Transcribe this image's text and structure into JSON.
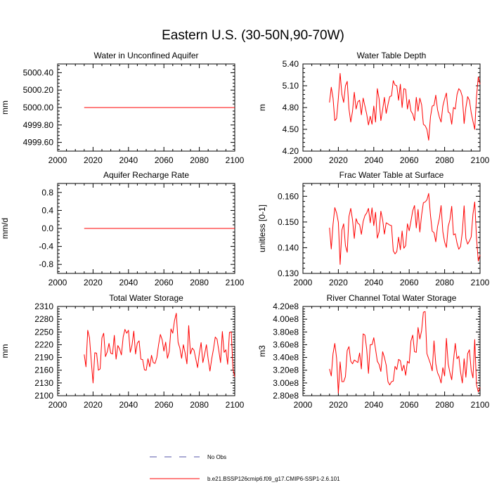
{
  "figure_title": "Eastern U.S. (30-50N,90-70W)",
  "colors": {
    "series": "#ff0000",
    "obs": "#5555aa",
    "axis": "#000000"
  },
  "legend": {
    "entries": [
      {
        "label": "No Obs",
        "style": "dashed",
        "color": "#5555aa"
      },
      {
        "label": "b.e21.BSSP126cmip6.f09_g17.CMIP6-SSP1-2.6.101",
        "style": "solid",
        "color": "#ff0000"
      }
    ]
  },
  "chart_data": [
    {
      "type": "line",
      "title": "Water in Unconfined Aquifer",
      "ylabel": "mm",
      "xlim": [
        2000,
        2100
      ],
      "ylim": [
        4999.5,
        5000.5
      ],
      "xticks": [
        2000,
        2020,
        2040,
        2060,
        2080,
        2100
      ],
      "xtick_labels": [
        "2000",
        "2020",
        "2040",
        "2060",
        "2080",
        "2100"
      ],
      "yticks": [
        4999.6,
        4999.8,
        5000.0,
        5000.2,
        5000.4
      ],
      "ytick_labels": [
        "4999.60",
        "4999.80",
        "5000.00",
        "5000.20",
        "5000.40"
      ],
      "x_start": 2015,
      "series": [
        {
          "values": [
            5000,
            5000,
            5000,
            5000,
            5000,
            5000,
            5000,
            5000,
            5000,
            5000,
            5000,
            5000,
            5000,
            5000,
            5000,
            5000,
            5000,
            5000,
            5000,
            5000,
            5000,
            5000,
            5000,
            5000,
            5000,
            5000,
            5000,
            5000,
            5000,
            5000,
            5000,
            5000,
            5000,
            5000,
            5000,
            5000,
            5000,
            5000,
            5000,
            5000,
            5000,
            5000,
            5000,
            5000,
            5000,
            5000,
            5000,
            5000,
            5000,
            5000,
            5000,
            5000,
            5000,
            5000,
            5000,
            5000,
            5000,
            5000,
            5000,
            5000,
            5000,
            5000,
            5000,
            5000,
            5000,
            5000,
            5000,
            5000,
            5000,
            5000,
            5000,
            5000,
            5000,
            5000,
            5000,
            5000,
            5000,
            5000,
            5000,
            5000,
            5000,
            5000,
            5000,
            5000,
            5000,
            5000
          ]
        }
      ]
    },
    {
      "type": "line",
      "title": "Water Table Depth",
      "ylabel": "m",
      "xlim": [
        2000,
        2100
      ],
      "ylim": [
        4.2,
        5.4
      ],
      "xticks": [
        2000,
        2020,
        2040,
        2060,
        2080,
        2100
      ],
      "xtick_labels": [
        "2000",
        "2020",
        "2040",
        "2060",
        "2080",
        "2100"
      ],
      "yticks": [
        4.2,
        4.5,
        4.8,
        5.1,
        5.4
      ],
      "ytick_labels": [
        "4.20",
        "4.50",
        "4.80",
        "5.10",
        "5.40"
      ],
      "x_start": 2015,
      "series": [
        {
          "values": [
            4.87,
            5.08,
            4.93,
            4.62,
            4.65,
            4.93,
            5.27,
            4.98,
            4.87,
            5.1,
            5.16,
            4.78,
            4.6,
            4.75,
            5.01,
            4.78,
            4.88,
            4.9,
            4.7,
            4.93,
            4.82,
            4.71,
            4.56,
            4.68,
            4.57,
            4.82,
            4.6,
            5.06,
            4.92,
            4.62,
            4.77,
            4.94,
            4.72,
            4.84,
            4.95,
            4.96,
            5.17,
            5.11,
            5.1,
            4.9,
            5.12,
            4.8,
            5.06,
            5.05,
            4.78,
            4.91,
            4.75,
            4.71,
            4.62,
            4.94,
            4.75,
            4.93,
            4.84,
            4.57,
            4.55,
            4.5,
            4.35,
            4.67,
            4.82,
            4.83,
            4.97,
            4.77,
            4.67,
            4.6,
            4.82,
            4.92,
            5,
            4.74,
            4.72,
            4.57,
            4.8,
            4.78,
            4.98,
            5.06,
            5.03,
            4.95,
            4.58,
            4.8,
            4.95,
            4.9,
            4.73,
            4.61,
            4.5,
            4.95,
            5.22,
            5.12
          ]
        }
      ]
    },
    {
      "type": "line",
      "title": "Aquifer Recharge Rate",
      "ylabel": "mm/d",
      "xlim": [
        2000,
        2100
      ],
      "ylim": [
        -1.0,
        1.0
      ],
      "xticks": [
        2000,
        2020,
        2040,
        2060,
        2080,
        2100
      ],
      "xtick_labels": [
        "2000",
        "2020",
        "2040",
        "2060",
        "2080",
        "2100"
      ],
      "yticks": [
        -0.8,
        -0.4,
        0.0,
        0.4,
        0.8
      ],
      "ytick_labels": [
        "-0.8",
        "-0.4",
        "0.0",
        "0.4",
        "0.8"
      ],
      "x_start": 2015,
      "series": [
        {
          "values": [
            0,
            0,
            0,
            0,
            0,
            0,
            0,
            0,
            0,
            0,
            0,
            0,
            0,
            0,
            0,
            0,
            0,
            0,
            0,
            0,
            0,
            0,
            0,
            0,
            0,
            0,
            0,
            0,
            0,
            0,
            0,
            0,
            0,
            0,
            0,
            0,
            0,
            0,
            0,
            0,
            0,
            0,
            0,
            0,
            0,
            0,
            0,
            0,
            0,
            0,
            0,
            0,
            0,
            0,
            0,
            0,
            0,
            0,
            0,
            0,
            0,
            0,
            0,
            0,
            0,
            0,
            0,
            0,
            0,
            0,
            0,
            0,
            0,
            0,
            0,
            0,
            0,
            0,
            0,
            0,
            0,
            0,
            0,
            0,
            0,
            0
          ]
        }
      ]
    },
    {
      "type": "line",
      "title": "Frac Water Table at Surface",
      "ylabel": "unitless [0-1]",
      "xlim": [
        2000,
        2100
      ],
      "ylim": [
        0.13,
        0.165
      ],
      "xticks": [
        2000,
        2020,
        2040,
        2060,
        2080,
        2100
      ],
      "xtick_labels": [
        "2000",
        "2020",
        "2040",
        "2060",
        "2080",
        "2100"
      ],
      "yticks": [
        0.13,
        0.14,
        0.15,
        0.16
      ],
      "ytick_labels": [
        "0.130",
        "0.140",
        "0.150",
        "0.160"
      ],
      "x_start": 2015,
      "series": [
        {
          "values": [
            0.1478,
            0.1395,
            0.1491,
            0.1556,
            0.1535,
            0.1499,
            0.1335,
            0.1469,
            0.1493,
            0.1408,
            0.1382,
            0.1522,
            0.1553,
            0.1508,
            0.1436,
            0.1513,
            0.1495,
            0.149,
            0.1452,
            0.1502,
            0.1525,
            0.1535,
            0.1553,
            0.1497,
            0.1555,
            0.1486,
            0.1538,
            0.1437,
            0.1462,
            0.1542,
            0.1509,
            0.1453,
            0.1497,
            0.1493,
            0.1488,
            0.1486,
            0.1388,
            0.1376,
            0.1385,
            0.1441,
            0.1392,
            0.1465,
            0.1398,
            0.1408,
            0.1493,
            0.1466,
            0.1504,
            0.1544,
            0.1564,
            0.1477,
            0.1549,
            0.1461,
            0.1527,
            0.1575,
            0.1578,
            0.1586,
            0.1611,
            0.1527,
            0.1464,
            0.1459,
            0.1423,
            0.1482,
            0.1513,
            0.1564,
            0.1462,
            0.1422,
            0.1401,
            0.1482,
            0.1509,
            0.1561,
            0.145,
            0.1454,
            0.1418,
            0.1394,
            0.1405,
            0.1462,
            0.1563,
            0.1436,
            0.1414,
            0.1426,
            0.1442,
            0.1531,
            0.1578,
            0.1438,
            0.1348,
            0.1372
          ]
        }
      ]
    },
    {
      "type": "line",
      "title": "Total Water Storage",
      "ylabel": "mm",
      "xlim": [
        2000,
        2100
      ],
      "ylim": [
        2100,
        2310
      ],
      "xticks": [
        2000,
        2020,
        2040,
        2060,
        2080,
        2100
      ],
      "xtick_labels": [
        "2000",
        "2020",
        "2040",
        "2060",
        "2080",
        "2100"
      ],
      "yticks": [
        2100,
        2130,
        2160,
        2190,
        2220,
        2250,
        2280,
        2310
      ],
      "ytick_labels": [
        "2100",
        "2130",
        "2160",
        "2190",
        "2220",
        "2250",
        "2280",
        "2310"
      ],
      "x_start": 2015,
      "series": [
        {
          "values": [
            2197,
            2168,
            2254,
            2236,
            2181,
            2130,
            2201,
            2200,
            2160,
            2163,
            2236,
            2247,
            2192,
            2203,
            2223,
            2200,
            2198,
            2242,
            2186,
            2218,
            2210,
            2196,
            2238,
            2256,
            2247,
            2254,
            2202,
            2219,
            2252,
            2198,
            2224,
            2229,
            2186,
            2185,
            2161,
            2160,
            2187,
            2168,
            2195,
            2178,
            2176,
            2190,
            2220,
            2244,
            2232,
            2205,
            2226,
            2188,
            2204,
            2257,
            2247,
            2277,
            2294,
            2226,
            2212,
            2188,
            2220,
            2200,
            2175,
            2265,
            2198,
            2212,
            2207,
            2187,
            2166,
            2200,
            2225,
            2178,
            2198,
            2220,
            2186,
            2158,
            2187,
            2210,
            2238,
            2233,
            2206,
            2178,
            2251,
            2202,
            2208,
            2174,
            2249,
            2250,
            2163,
            2144
          ]
        }
      ]
    },
    {
      "type": "line",
      "title": "River Channel Total Water Storage",
      "ylabel": "m3",
      "xlim": [
        2000,
        2100
      ],
      "ylim": [
        280000000,
        420000000
      ],
      "xticks": [
        2000,
        2020,
        2040,
        2060,
        2080,
        2100
      ],
      "xtick_labels": [
        "2000",
        "2020",
        "2040",
        "2060",
        "2080",
        "2100"
      ],
      "yticks": [
        280000000,
        300000000,
        320000000,
        340000000,
        360000000,
        380000000,
        400000000,
        420000000
      ],
      "ytick_labels": [
        "2.80e8",
        "3.00e8",
        "3.20e8",
        "3.40e8",
        "3.60e8",
        "3.80e8",
        "4.00e8",
        "4.20e8"
      ],
      "x_start": 2015,
      "series": [
        {
          "values": [
            322000000,
            311000000,
            346000000,
            362000000,
            339000000,
            284000000,
            333000000,
            302000000,
            302000000,
            310000000,
            351000000,
            357000000,
            334000000,
            330000000,
            336000000,
            334000000,
            332000000,
            347000000,
            322000000,
            377000000,
            375000000,
            353000000,
            315000000,
            360000000,
            360000000,
            371000000,
            353000000,
            334000000,
            329000000,
            318000000,
            349000000,
            340000000,
            328000000,
            302000000,
            297000000,
            302000000,
            303000000,
            326000000,
            321000000,
            337000000,
            335000000,
            319000000,
            328000000,
            312000000,
            334000000,
            331000000,
            366000000,
            375000000,
            349000000,
            348000000,
            387000000,
            369000000,
            382000000,
            411000000,
            412000000,
            346000000,
            338000000,
            330000000,
            319000000,
            366000000,
            330000000,
            316000000,
            310000000,
            300000000,
            324000000,
            311000000,
            370000000,
            330000000,
            316000000,
            305000000,
            335000000,
            362000000,
            338000000,
            342000000,
            317000000,
            300000000,
            338000000,
            309000000,
            346000000,
            352000000,
            320000000,
            308000000,
            368000000,
            297000000,
            286000000,
            293000000
          ]
        }
      ]
    }
  ]
}
